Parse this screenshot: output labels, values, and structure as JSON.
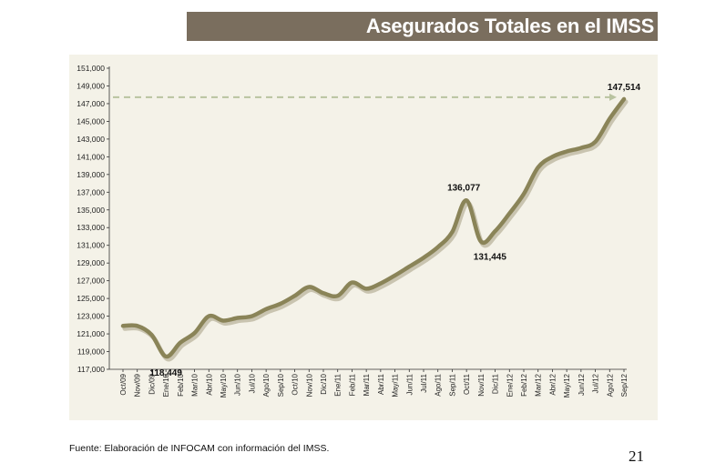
{
  "header": {
    "title": "Asegurados Totales en el IMSS"
  },
  "footer": {
    "source": "Fuente: Elaboración de INFOCAM con información del IMSS.",
    "page_number": "21"
  },
  "colors": {
    "title_bg": "#7a6e5e",
    "panel_bg": "#f4f2e8",
    "line": "#8a8458",
    "shadow": "#c9c4b0",
    "reference_line": "#b9c3a0"
  },
  "chart_data": {
    "type": "line",
    "title": "Asegurados Totales en el IMSS",
    "xlabel": "",
    "ylabel": "",
    "ylim": [
      117000,
      151000
    ],
    "yticks": [
      117000,
      119000,
      121000,
      123000,
      125000,
      127000,
      129000,
      131000,
      133000,
      135000,
      137000,
      139000,
      141000,
      143000,
      145000,
      147000,
      149000,
      151000
    ],
    "ytick_labels": [
      "117,000",
      "119,000",
      "121,000",
      "123,000",
      "125,000",
      "127,000",
      "129,000",
      "131,000",
      "133,000",
      "135,000",
      "137,000",
      "139,000",
      "141,000",
      "143,000",
      "145,000",
      "147,000",
      "149,000",
      "151,000"
    ],
    "categories": [
      "Oct/09",
      "Nov/09",
      "Dic/09",
      "Ene/10",
      "Feb/10",
      "Mar/10",
      "Abr/10",
      "May/10",
      "Jun/10",
      "Jul/10",
      "Ago/10",
      "Sep/10",
      "Oct/10",
      "Nov/10",
      "Dic/10",
      "Ene/11",
      "Feb/11",
      "Mar/11",
      "Abr/11",
      "May/11",
      "Jun/11",
      "Jul/11",
      "Ago/11",
      "Sep/11",
      "Oct/11",
      "Nov/11",
      "Dic/11",
      "Ene/12",
      "Feb/12",
      "Mar/12",
      "Abr/12",
      "May/12",
      "Jun/12",
      "Jul/12",
      "Ago/12",
      "Sep/12"
    ],
    "values": [
      121900,
      121900,
      120900,
      118449,
      120000,
      121100,
      123000,
      122500,
      122800,
      123000,
      123800,
      124400,
      125300,
      126300,
      125600,
      125300,
      126800,
      126100,
      126700,
      127600,
      128600,
      129600,
      130800,
      132500,
      136077,
      131445,
      132600,
      134600,
      136800,
      139800,
      141000,
      141600,
      142000,
      142700,
      145300,
      147514
    ],
    "annotations": [
      {
        "index": 3,
        "text": "118,449"
      },
      {
        "index": 24,
        "text": "136,077"
      },
      {
        "index": 25,
        "text": "131,445"
      },
      {
        "index": 35,
        "text": "147,514"
      }
    ],
    "reference_line": {
      "value": 147514,
      "style": "dashed-arrow"
    },
    "grid": false,
    "legend": "none"
  }
}
